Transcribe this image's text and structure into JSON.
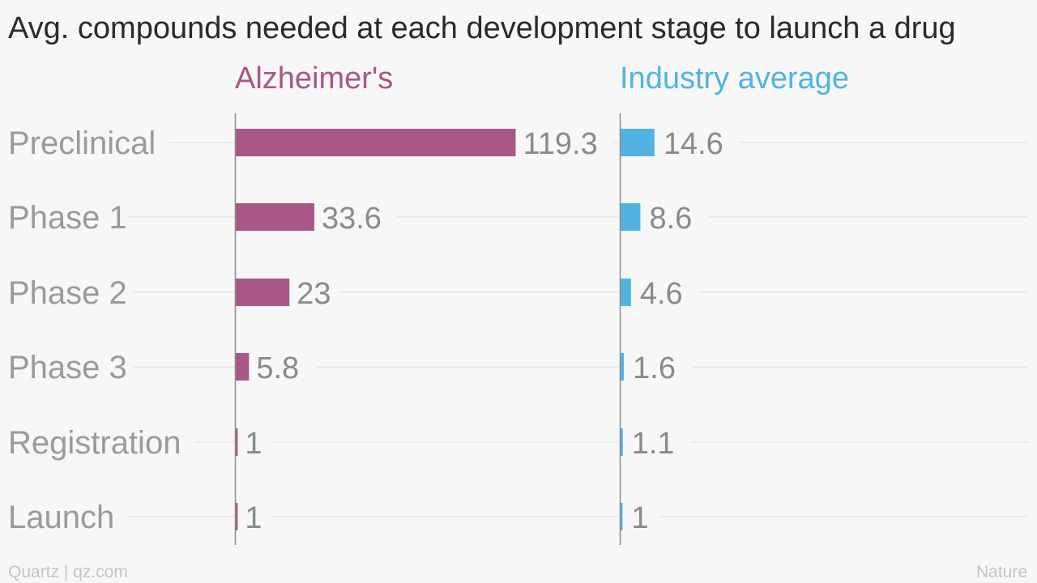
{
  "chart_data": {
    "type": "bar",
    "title": "Avg. compounds needed at each development stage to launch a drug",
    "categories": [
      "Preclinical",
      "Phase 1",
      "Phase 2",
      "Phase 3",
      "Registration",
      "Launch"
    ],
    "series": [
      {
        "name": "Alzheimer's",
        "values": [
          119.3,
          33.6,
          23,
          5.8,
          1,
          1
        ],
        "value_labels": [
          "119.3",
          "33.6",
          "23",
          "5.8",
          "1",
          "1"
        ],
        "color": "#a85786"
      },
      {
        "name": "Industry average",
        "values": [
          14.6,
          8.6,
          4.6,
          1.6,
          1.1,
          1
        ],
        "value_labels": [
          "14.6",
          "8.6",
          "4.6",
          "1.6",
          "1.1",
          "1"
        ],
        "color": "#52b3e3"
      }
    ],
    "orientation": "horizontal",
    "layout": "small-multiples",
    "grid": true,
    "legend": "panel headers"
  },
  "footer": {
    "source_left": "Quartz | qz.com",
    "source_right": "Nature"
  }
}
